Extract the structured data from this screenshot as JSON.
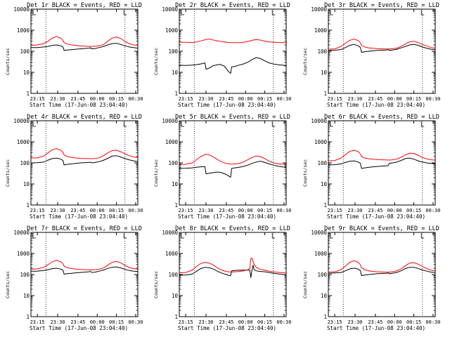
{
  "chart_data": [
    {
      "type": "line",
      "title": "Det 1r BLACK = Events, RED = LLD",
      "ylabel": "Counts/sec",
      "xlabel": "Start Time (17-Jun-08 23:04:40)",
      "ylim": [
        1,
        10000
      ],
      "yscale": "log",
      "ytick_labels": [
        "1",
        "10",
        "100",
        "1000",
        "10000"
      ],
      "xtick_labels": [
        "23:15",
        "23:30",
        "23:45",
        "00:00",
        "00:15",
        "00:30"
      ],
      "x": [
        0,
        6,
        12,
        16,
        20,
        24,
        28,
        30,
        31,
        34,
        38,
        42,
        46,
        50,
        54,
        56,
        57,
        60,
        64,
        68,
        72,
        76,
        80,
        84,
        88,
        92,
        96,
        100
      ],
      "series": [
        {
          "color": "#000000",
          "values": [
            150,
            150,
            160,
            170,
            190,
            200,
            180,
            160,
            110,
            115,
            120,
            125,
            130,
            135,
            140,
            145,
            130,
            135,
            150,
            170,
            200,
            230,
            240,
            210,
            180,
            160,
            150,
            140
          ]
        },
        {
          "color": "#ff0000",
          "values": [
            190,
            200,
            230,
            300,
            420,
            500,
            420,
            330,
            260,
            220,
            200,
            190,
            180,
            175,
            170,
            168,
            168,
            172,
            180,
            210,
            300,
            420,
            480,
            400,
            290,
            230,
            200,
            190
          ]
        }
      ]
    },
    {
      "type": "line",
      "title": "Det 2r BLACK = Events, RED = LLD",
      "ylabel": "Counts/sec",
      "xlabel": "Start Time (17-Jun-08 23:04:40)",
      "ylim": [
        1,
        10000
      ],
      "yscale": "log",
      "ytick_labels": [
        "1",
        "10",
        "100",
        "1000",
        "10000"
      ],
      "xtick_labels": [
        "23:15",
        "23:30",
        "23:45",
        "00:00",
        "00:15",
        "00:30"
      ],
      "x": [
        0,
        6,
        12,
        16,
        20,
        24,
        25,
        28,
        30,
        31,
        34,
        38,
        42,
        44,
        46,
        48,
        49,
        52,
        56,
        60,
        64,
        68,
        72,
        76,
        80,
        84,
        88,
        92,
        96,
        100
      ],
      "series": [
        {
          "color": "#000000",
          "values": [
            22,
            21,
            22,
            23,
            25,
            28,
            14,
            16,
            18,
            20,
            22,
            24,
            20,
            15,
            11,
            9,
            18,
            19,
            22,
            25,
            30,
            40,
            50,
            45,
            35,
            28,
            25,
            23,
            22,
            21
          ]
        },
        {
          "color": "#ff0000",
          "values": [
            270,
            265,
            260,
            275,
            310,
            350,
            360,
            380,
            370,
            350,
            320,
            300,
            280,
            270,
            262,
            258,
            256,
            255,
            258,
            265,
            290,
            330,
            360,
            340,
            300,
            280,
            270,
            262,
            258,
            255
          ]
        }
      ]
    },
    {
      "type": "line",
      "title": "Det 3r BLACK = Events, RED = LLD",
      "ylabel": "Counts/sec",
      "xlabel": "Start Time (17-Jun-08 23:04:40)",
      "ylim": [
        1,
        10000
      ],
      "yscale": "log",
      "ytick_labels": [
        "1",
        "10",
        "100",
        "1000",
        "10000"
      ],
      "xtick_labels": [
        "23:15",
        "23:30",
        "23:45",
        "00:00",
        "00:15",
        "00:30"
      ],
      "x": [
        0,
        6,
        12,
        16,
        20,
        24,
        28,
        30,
        31,
        34,
        38,
        42,
        46,
        50,
        54,
        56,
        57,
        60,
        64,
        68,
        72,
        76,
        80,
        84,
        88,
        92,
        96,
        100
      ],
      "series": [
        {
          "color": "#000000",
          "values": [
            110,
            112,
            120,
            150,
            190,
            210,
            180,
            150,
            90,
            95,
            100,
            105,
            110,
            112,
            115,
            118,
            110,
            115,
            125,
            145,
            170,
            200,
            210,
            190,
            160,
            140,
            125,
            120
          ]
        },
        {
          "color": "#ff0000",
          "values": [
            125,
            130,
            170,
            240,
            330,
            380,
            320,
            250,
            190,
            160,
            145,
            138,
            132,
            130,
            128,
            128,
            128,
            132,
            140,
            170,
            220,
            280,
            300,
            260,
            210,
            180,
            150,
            140
          ]
        }
      ]
    },
    {
      "type": "line",
      "title": "Det 4r BLACK = Events, RED = LLD",
      "ylabel": "Counts/sec",
      "xlabel": "Start Time (17-Jun-08 23:04:40)",
      "ylim": [
        1,
        10000
      ],
      "yscale": "log",
      "ytick_labels": [
        "1",
        "10",
        "100",
        "1000",
        "10000"
      ],
      "xtick_labels": [
        "23:15",
        "23:30",
        "23:45",
        "00:00",
        "00:15",
        "00:30"
      ],
      "x": [
        0,
        6,
        12,
        16,
        20,
        24,
        28,
        30,
        31,
        34,
        38,
        42,
        46,
        50,
        54,
        56,
        57,
        60,
        64,
        68,
        72,
        76,
        80,
        84,
        88,
        92,
        96,
        100
      ],
      "series": [
        {
          "color": "#000000",
          "values": [
            100,
            102,
            110,
            135,
            160,
            170,
            150,
            130,
            80,
            85,
            90,
            95,
            100,
            102,
            105,
            108,
            100,
            105,
            115,
            135,
            165,
            210,
            220,
            190,
            160,
            140,
            125,
            115
          ]
        },
        {
          "color": "#ff0000",
          "values": [
            170,
            175,
            210,
            300,
            420,
            480,
            400,
            310,
            240,
            200,
            180,
            170,
            165,
            162,
            160,
            158,
            158,
            162,
            175,
            220,
            300,
            380,
            400,
            340,
            270,
            220,
            190,
            180
          ]
        }
      ]
    },
    {
      "type": "line",
      "title": "Det 5r BLACK = Events, RED = LLD",
      "ylabel": "Counts/sec",
      "xlabel": "Start Time (17-Jun-08 23:04:40)",
      "ylim": [
        1,
        10000
      ],
      "yscale": "log",
      "ytick_labels": [
        "1",
        "10",
        "100",
        "1000",
        "10000"
      ],
      "xtick_labels": [
        "23:15",
        "23:30",
        "23:45",
        "00:00",
        "00:15",
        "00:30"
      ],
      "x": [
        0,
        6,
        12,
        16,
        20,
        24,
        25,
        28,
        32,
        36,
        40,
        44,
        46,
        48,
        49,
        52,
        56,
        60,
        64,
        68,
        72,
        76,
        80,
        84,
        88,
        92,
        96,
        100
      ],
      "series": [
        {
          "color": "#000000",
          "values": [
            55,
            56,
            58,
            62,
            65,
            66,
            30,
            32,
            35,
            37,
            34,
            28,
            24,
            21,
            55,
            58,
            62,
            68,
            78,
            95,
            110,
            120,
            105,
            90,
            78,
            70,
            65,
            62
          ]
        },
        {
          "color": "#ff0000",
          "values": [
            85,
            86,
            100,
            140,
            200,
            250,
            260,
            240,
            190,
            140,
            110,
            95,
            90,
            88,
            88,
            90,
            95,
            110,
            140,
            180,
            210,
            200,
            160,
            120,
            100,
            92,
            88,
            86
          ]
        }
      ]
    },
    {
      "type": "line",
      "title": "Det 6r BLACK = Events, RED = LLD",
      "ylabel": "Counts/sec",
      "xlabel": "Start Time (17-Jun-08 23:04:40)",
      "ylim": [
        1,
        10000
      ],
      "yscale": "log",
      "ytick_labels": [
        "1",
        "10",
        "100",
        "1000",
        "10000"
      ],
      "xtick_labels": [
        "23:15",
        "23:30",
        "23:45",
        "00:00",
        "00:15",
        "00:30"
      ],
      "x": [
        0,
        6,
        12,
        16,
        20,
        24,
        28,
        30,
        31,
        34,
        38,
        42,
        46,
        50,
        54,
        56,
        57,
        60,
        64,
        68,
        72,
        76,
        80,
        84,
        88,
        92,
        96,
        100
      ],
      "series": [
        {
          "color": "#000000",
          "values": [
            80,
            82,
            90,
            105,
            120,
            125,
            110,
            95,
            55,
            58,
            62,
            65,
            68,
            70,
            72,
            74,
            95,
            100,
            110,
            130,
            160,
            170,
            150,
            125,
            110,
            100,
            95,
            90
          ]
        },
        {
          "color": "#ff0000",
          "values": [
            125,
            130,
            170,
            250,
            350,
            400,
            340,
            260,
            200,
            170,
            155,
            148,
            143,
            140,
            138,
            136,
            136,
            140,
            150,
            185,
            240,
            290,
            280,
            230,
            180,
            155,
            140,
            135
          ]
        }
      ]
    },
    {
      "type": "line",
      "title": "Det 7r BLACK = Events, RED = LLD",
      "ylabel": "Counts/sec",
      "xlabel": "Start Time (17-Jun-08 23:04:40)",
      "ylim": [
        1,
        10000
      ],
      "yscale": "log",
      "ytick_labels": [
        "1",
        "10",
        "100",
        "1000",
        "10000"
      ],
      "xtick_labels": [
        "23:15",
        "23:30",
        "23:45",
        "00:00",
        "00:15",
        "00:30"
      ],
      "x": [
        0,
        6,
        12,
        16,
        20,
        24,
        28,
        30,
        31,
        34,
        38,
        42,
        46,
        50,
        54,
        56,
        57,
        60,
        64,
        68,
        72,
        76,
        80,
        84,
        88,
        92,
        96,
        100
      ],
      "series": [
        {
          "color": "#000000",
          "values": [
            145,
            145,
            155,
            170,
            190,
            200,
            180,
            160,
            105,
            110,
            115,
            120,
            125,
            130,
            135,
            140,
            125,
            130,
            145,
            165,
            195,
            220,
            230,
            205,
            175,
            155,
            145,
            140
          ]
        },
        {
          "color": "#ff0000",
          "values": [
            180,
            185,
            220,
            290,
            400,
            480,
            400,
            320,
            250,
            210,
            192,
            182,
            175,
            170,
            168,
            166,
            166,
            170,
            178,
            205,
            280,
            380,
            420,
            360,
            270,
            215,
            190,
            182
          ]
        }
      ]
    },
    {
      "type": "line",
      "title": "Det 8r BLACK = Events, RED = LLD",
      "ylabel": "Counts/sec",
      "xlabel": "Start Time (17-Jun-08 23:04:40)",
      "ylim": [
        1,
        10000
      ],
      "yscale": "log",
      "ytick_labels": [
        "1",
        "10",
        "100",
        "1000",
        "10000"
      ],
      "xtick_labels": [
        "23:15",
        "23:30",
        "23:45",
        "00:00",
        "00:15",
        "00:30"
      ],
      "x": [
        0,
        6,
        12,
        16,
        20,
        24,
        28,
        32,
        36,
        40,
        44,
        46,
        48,
        49,
        52,
        56,
        60,
        64,
        66,
        67,
        68,
        69,
        70,
        71,
        72,
        74,
        76,
        80,
        84,
        88,
        92,
        96,
        100
      ],
      "series": [
        {
          "color": "#000000",
          "values": [
            95,
            95,
            105,
            140,
            190,
            220,
            210,
            180,
            140,
            115,
            100,
            92,
            88,
            150,
            155,
            160,
            162,
            163,
            160,
            70,
            165,
            280,
            170,
            160,
            150,
            145,
            140,
            135,
            125,
            115,
            108,
            102,
            98
          ]
        },
        {
          "color": "#ff0000",
          "values": [
            120,
            125,
            160,
            240,
            330,
            380,
            350,
            280,
            200,
            160,
            140,
            135,
            132,
            132,
            135,
            140,
            150,
            170,
            190,
            580,
            600,
            420,
            300,
            260,
            220,
            190,
            175,
            160,
            145,
            135,
            128,
            122,
            118
          ]
        }
      ]
    },
    {
      "type": "line",
      "title": "Det 9r BLACK = Events, RED = LLD",
      "ylabel": "Counts/sec",
      "xlabel": "Start Time (17-Jun-08 23:04:40)",
      "ylim": [
        1,
        10000
      ],
      "yscale": "log",
      "ytick_labels": [
        "1",
        "10",
        "100",
        "1000",
        "10000"
      ],
      "xtick_labels": [
        "23:15",
        "23:30",
        "23:45",
        "00:00",
        "00:15",
        "00:30"
      ],
      "x": [
        0,
        6,
        12,
        16,
        20,
        24,
        28,
        30,
        31,
        34,
        38,
        42,
        46,
        50,
        54,
        56,
        57,
        60,
        64,
        68,
        72,
        76,
        80,
        84,
        88,
        92,
        96,
        100
      ],
      "series": [
        {
          "color": "#000000",
          "values": [
            115,
            118,
            125,
            150,
            185,
            200,
            180,
            150,
            90,
            95,
            100,
            105,
            110,
            112,
            115,
            118,
            110,
            115,
            125,
            150,
            190,
            220,
            220,
            195,
            165,
            145,
            130,
            125
          ]
        },
        {
          "color": "#ff0000",
          "values": [
            130,
            135,
            170,
            250,
            380,
            450,
            380,
            290,
            210,
            170,
            150,
            140,
            135,
            132,
            130,
            130,
            130,
            135,
            148,
            185,
            260,
            350,
            370,
            310,
            240,
            190,
            160,
            150
          ]
        }
      ]
    }
  ]
}
